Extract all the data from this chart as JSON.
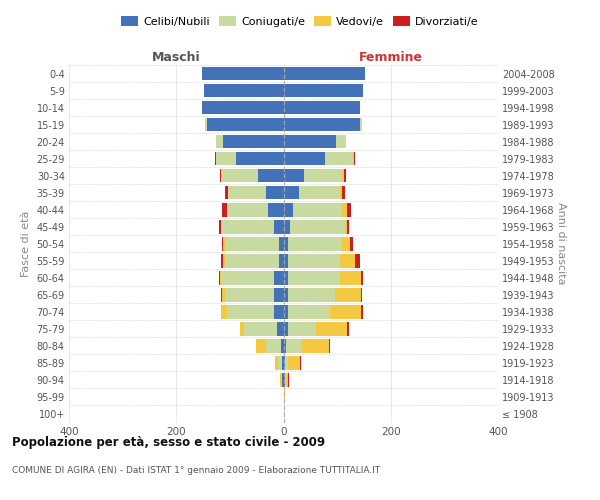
{
  "age_groups": [
    "100+",
    "95-99",
    "90-94",
    "85-89",
    "80-84",
    "75-79",
    "70-74",
    "65-69",
    "60-64",
    "55-59",
    "50-54",
    "45-49",
    "40-44",
    "35-39",
    "30-34",
    "25-29",
    "20-24",
    "15-19",
    "10-14",
    "5-9",
    "0-4"
  ],
  "birth_years": [
    "≤ 1908",
    "1909-1913",
    "1914-1918",
    "1919-1923",
    "1924-1928",
    "1929-1933",
    "1934-1938",
    "1939-1943",
    "1944-1948",
    "1949-1953",
    "1954-1958",
    "1959-1963",
    "1964-1968",
    "1969-1973",
    "1974-1978",
    "1979-1983",
    "1984-1988",
    "1989-1993",
    "1994-1998",
    "1999-2003",
    "2004-2008"
  ],
  "maschi_celibi": [
    0,
    0,
    2,
    3,
    5,
    12,
    18,
    18,
    18,
    8,
    8,
    18,
    28,
    32,
    48,
    88,
    112,
    142,
    152,
    148,
    152
  ],
  "maschi_coniugati": [
    0,
    0,
    3,
    8,
    28,
    62,
    88,
    92,
    98,
    102,
    102,
    98,
    78,
    72,
    68,
    38,
    13,
    4,
    0,
    0,
    0
  ],
  "maschi_vedovi": [
    0,
    0,
    2,
    5,
    18,
    8,
    10,
    5,
    2,
    2,
    2,
    0,
    0,
    0,
    0,
    0,
    0,
    0,
    0,
    0,
    0
  ],
  "maschi_divorziati": [
    0,
    0,
    0,
    0,
    0,
    0,
    0,
    2,
    2,
    5,
    2,
    5,
    8,
    5,
    2,
    2,
    0,
    0,
    0,
    0,
    0
  ],
  "femmine_nubili": [
    0,
    0,
    2,
    2,
    4,
    8,
    8,
    8,
    8,
    8,
    8,
    12,
    18,
    28,
    38,
    78,
    98,
    142,
    142,
    148,
    152
  ],
  "femmine_coniugate": [
    0,
    0,
    2,
    6,
    28,
    52,
    78,
    88,
    98,
    98,
    102,
    102,
    92,
    78,
    72,
    52,
    18,
    4,
    0,
    0,
    0
  ],
  "femmine_vedove": [
    0,
    2,
    5,
    22,
    52,
    58,
    58,
    48,
    38,
    28,
    14,
    4,
    8,
    4,
    2,
    2,
    0,
    0,
    0,
    0,
    0
  ],
  "femmine_divorziate": [
    0,
    0,
    2,
    2,
    2,
    5,
    5,
    2,
    5,
    8,
    5,
    5,
    8,
    5,
    5,
    2,
    0,
    0,
    0,
    0,
    0
  ],
  "color_celibi": "#4472b8",
  "color_coniugati": "#c8daa0",
  "color_vedovi": "#f5c842",
  "color_divorziati": "#cc2020",
  "legend_labels": [
    "Celibi/Nubili",
    "Coniugati/e",
    "Vedovi/e",
    "Divorziati/e"
  ],
  "title": "Popolazione per età, sesso e stato civile - 2009",
  "subtitle": "COMUNE DI AGIRA (EN) - Dati ISTAT 1° gennaio 2009 - Elaborazione TUTTITALIA.IT",
  "label_maschi": "Maschi",
  "label_femmine": "Femmine",
  "ylabel_left": "Fasce di età",
  "ylabel_right": "Anni di nascita",
  "xlim": 400,
  "bg_color": "#ffffff",
  "grid_color": "#cccccc"
}
